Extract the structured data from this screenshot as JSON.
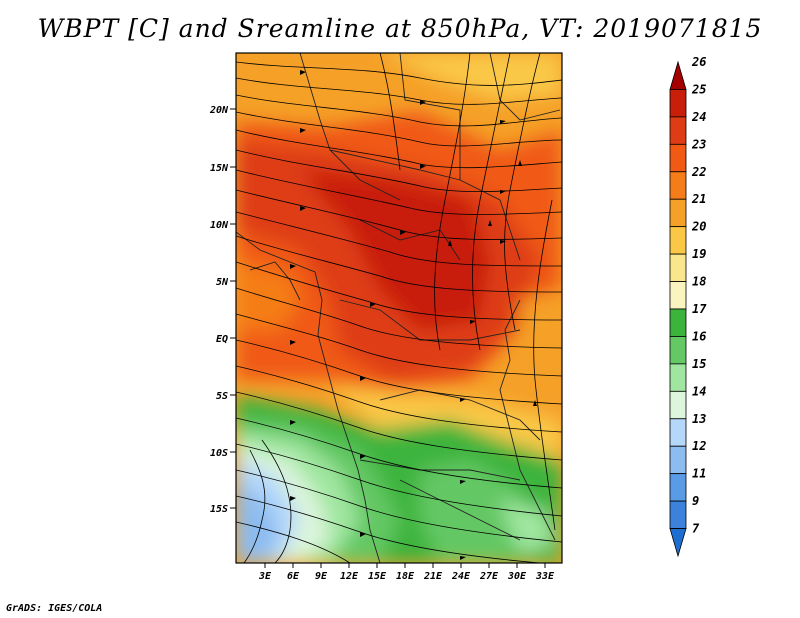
{
  "title": "WBPT [C] and Sreamline at 850hPa, VT: 2019071815",
  "credit": "GrADS: IGES/COLA",
  "map": {
    "lat_labels": [
      "20N",
      "15N",
      "10N",
      "5N",
      "EQ",
      "5S",
      "10S",
      "15S"
    ],
    "lon_labels": [
      "3E",
      "6E",
      "9E",
      "12E",
      "15E",
      "18E",
      "21E",
      "24E",
      "27E",
      "30E",
      "33E"
    ],
    "lat_range": [
      -20,
      24
    ],
    "lon_range": [
      0,
      34.5
    ]
  },
  "colorbar": {
    "levels": [
      "26",
      "25",
      "24",
      "23",
      "22",
      "21",
      "20",
      "19",
      "18",
      "17",
      "16",
      "15",
      "14",
      "13",
      "12",
      "11",
      "9",
      "7"
    ],
    "colors": [
      "#a50000",
      "#c81e0a",
      "#de3c14",
      "#f05a14",
      "#f57d19",
      "#f5a028",
      "#fac846",
      "#fae68c",
      "#faf5c0",
      "#3cb43c",
      "#64c864",
      "#a0e6a0",
      "#dcf5dc",
      "#b4d7fa",
      "#8cbcf0",
      "#5a9be6",
      "#3c82dc",
      "#1e6ed2"
    ]
  }
}
